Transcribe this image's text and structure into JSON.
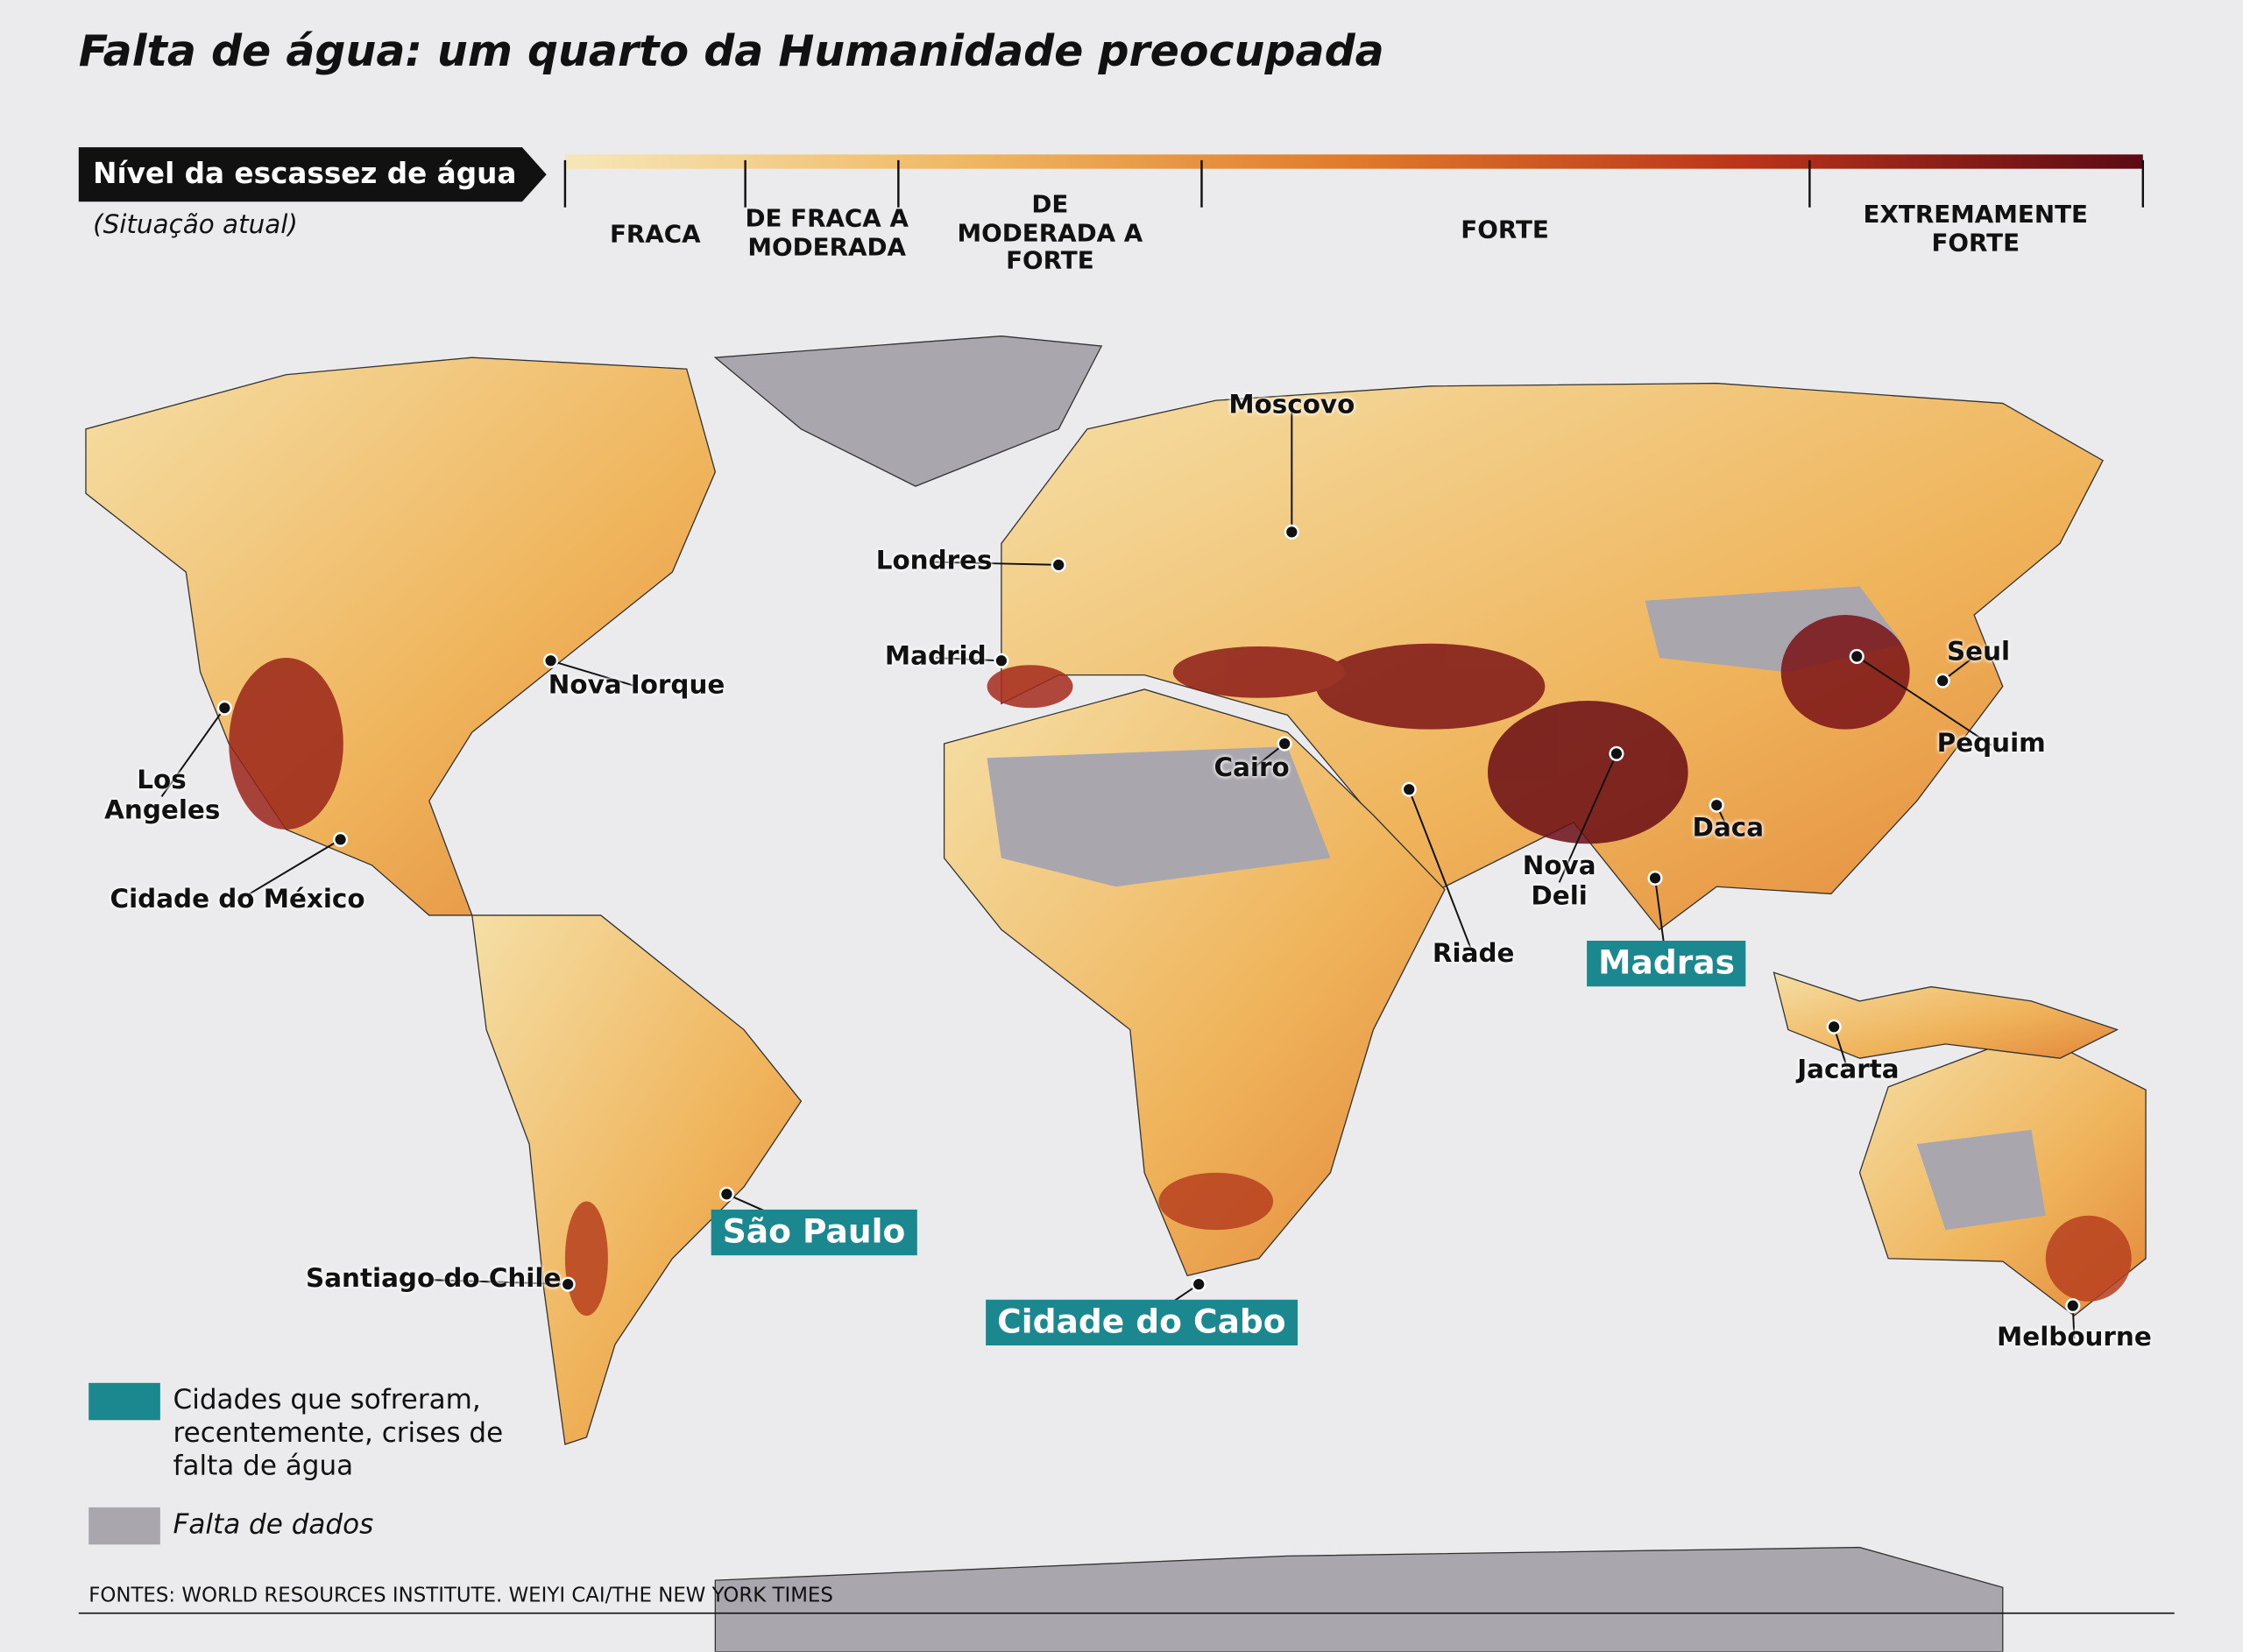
{
  "title": "Falta de água: um quarto da Humanidade preocupada",
  "legend": {
    "label": "Nível da escassez de água",
    "note": "(Situação atual)",
    "levels": [
      "FRACA",
      "DE FRACA A MODERADA",
      "DE MODERADA A FORTE",
      "FORTE",
      "EXTREMAMENTE FORTE"
    ]
  },
  "cities": [
    {
      "name": "Moscovo",
      "crisis": false
    },
    {
      "name": "Londres",
      "crisis": false
    },
    {
      "name": "Madrid",
      "crisis": false
    },
    {
      "name": "Nova Iorque",
      "crisis": false
    },
    {
      "name": "Los Angeles",
      "crisis": false
    },
    {
      "name": "Cidade do México",
      "crisis": false
    },
    {
      "name": "Cairo",
      "crisis": false
    },
    {
      "name": "Riade",
      "crisis": false
    },
    {
      "name": "Nova Deli",
      "crisis": false
    },
    {
      "name": "Daca",
      "crisis": false
    },
    {
      "name": "Madras",
      "crisis": true
    },
    {
      "name": "Seul",
      "crisis": false
    },
    {
      "name": "Pequim",
      "crisis": false
    },
    {
      "name": "Jacarta",
      "crisis": false
    },
    {
      "name": "Melbourne",
      "crisis": false
    },
    {
      "name": "São Paulo",
      "crisis": true
    },
    {
      "name": "Santiago do Chile",
      "crisis": false
    },
    {
      "name": "Cidade do Cabo",
      "crisis": true
    }
  ],
  "key": {
    "crisis": "Cidades que sofreram, recentemente, crises de falta de água",
    "no_data": "Falta de dados"
  },
  "source": "FONTES: WORLD RESOURCES INSTITUTE. WEIYI CAI/THE NEW YORK TIMES"
}
